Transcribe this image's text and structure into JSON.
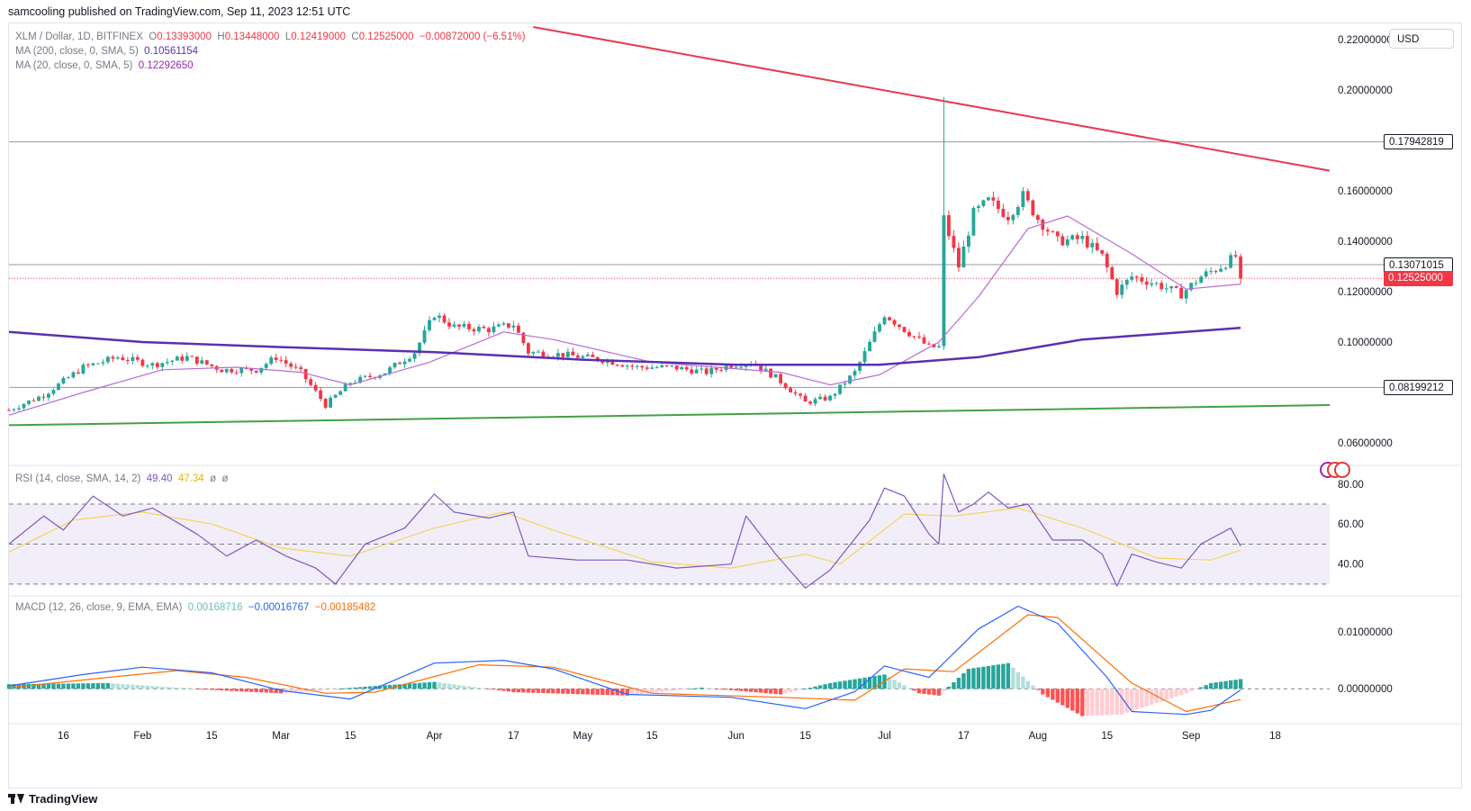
{
  "header": {
    "publisher_text": "samcooling published on TradingView.com, Sep 11, 2023 12:51 UTC"
  },
  "legend": {
    "symbol": "XLM / Dollar, 1D, BITFINEX",
    "open_label": "O",
    "open": "0.13393000",
    "high_label": "H",
    "high": "0.13448000",
    "low_label": "L",
    "low": "0.12419000",
    "close_label": "C",
    "close": "0.12525000",
    "change": "−0.00872000 (−6.51%)",
    "ma200_label": "MA (200, close, 0, SMA, 5)",
    "ma200_value": "0.10561154",
    "ma20_label": "MA (20, close, 0, SMA, 5)",
    "ma20_value": "0.12292650"
  },
  "rsi_legend": {
    "label": "RSI (14, close, SMA, 14, 2)",
    "rsi": "49.40",
    "rsi_ma": "47.34",
    "extra1": "ø",
    "extra2": "ø"
  },
  "macd_legend": {
    "label": "MACD (12, 26, close, 9, EMA, EMA)",
    "histogram": "0.00168716",
    "macd": "−0.00016767",
    "signal": "−0.00185482"
  },
  "currency": "USD",
  "price_tags": {
    "resistance_top": "0.17942819",
    "resistance_mid": "0.13071015",
    "last_price": "0.12525000",
    "support": "0.08199212"
  },
  "footer": {
    "brand": "TradingView"
  },
  "colors": {
    "up": "#26a69a",
    "down": "#f23645",
    "ma200": "#5b2fb0",
    "ma20": "#b86ad6",
    "trend_red": "#e8384f",
    "trend_green": "#43a047",
    "rsi": "#7e57c2",
    "rsi_ma": "#f5d45a",
    "macd": "#2962ff",
    "signal": "#ff6d00"
  },
  "chart_data": [
    {
      "type": "candlestick",
      "price_axis_ticks": [
        "0.22000000",
        "0.20000000",
        "0.16000000",
        "0.14000000",
        "0.12000000",
        "0.10000000",
        "0.06000000"
      ],
      "x_tick_labels": [
        "16",
        "Feb",
        "15",
        "Mar",
        "15",
        "Apr",
        "17",
        "May",
        "15",
        "Jun",
        "15",
        "Jul",
        "17",
        "Aug",
        "15",
        "Sep",
        "18"
      ],
      "x_tick_dates": [
        "2023-01-16",
        "2023-02-01",
        "2023-02-15",
        "2023-03-01",
        "2023-03-15",
        "2023-04-01",
        "2023-04-17",
        "2023-05-01",
        "2023-05-15",
        "2023-06-01",
        "2023-06-15",
        "2023-07-01",
        "2023-07-17",
        "2023-08-01",
        "2023-08-15",
        "2023-09-01",
        "2023-09-18"
      ],
      "x_range": [
        "2023-01-05",
        "2023-09-29"
      ],
      "ylim": [
        0.05,
        0.225
      ],
      "horizontal_levels": [
        0.17942819,
        0.13071015,
        0.08199212
      ],
      "last_price": 0.12525,
      "trendline_resistance": [
        [
          "2023-04-21",
          0.225
        ],
        [
          "2023-09-29",
          0.168
        ]
      ],
      "trendline_support": [
        [
          "2023-01-05",
          0.067
        ],
        [
          "2023-09-29",
          0.075
        ]
      ],
      "close_path": [
        [
          "2023-01-05",
          0.073
        ],
        [
          "2023-01-12",
          0.079
        ],
        [
          "2023-01-20",
          0.09
        ],
        [
          "2023-01-27",
          0.094
        ],
        [
          "2023-02-03",
          0.091
        ],
        [
          "2023-02-10",
          0.094
        ],
        [
          "2023-02-17",
          0.089
        ],
        [
          "2023-02-24",
          0.089
        ],
        [
          "2023-02-28",
          0.094
        ],
        [
          "2023-03-05",
          0.088
        ],
        [
          "2023-03-10",
          0.075
        ],
        [
          "2023-03-15",
          0.084
        ],
        [
          "2023-03-22",
          0.088
        ],
        [
          "2023-03-28",
          0.096
        ],
        [
          "2023-04-01",
          0.111
        ],
        [
          "2023-04-05",
          0.106
        ],
        [
          "2023-04-12",
          0.105
        ],
        [
          "2023-04-17",
          0.107
        ],
        [
          "2023-04-20",
          0.096
        ],
        [
          "2023-04-27",
          0.095
        ],
        [
          "2023-05-05",
          0.093
        ],
        [
          "2023-05-12",
          0.09
        ],
        [
          "2023-05-19",
          0.09
        ],
        [
          "2023-05-26",
          0.088
        ],
        [
          "2023-05-31",
          0.091
        ],
        [
          "2023-06-04",
          0.092
        ],
        [
          "2023-06-09",
          0.086
        ],
        [
          "2023-06-15",
          0.076
        ],
        [
          "2023-06-20",
          0.078
        ],
        [
          "2023-06-25",
          0.088
        ],
        [
          "2023-07-01",
          0.111
        ],
        [
          "2023-07-05",
          0.105
        ],
        [
          "2023-07-10",
          0.098
        ],
        [
          "2023-07-12",
          0.098
        ],
        [
          "2023-07-13",
          0.149
        ],
        [
          "2023-07-16",
          0.13
        ],
        [
          "2023-07-19",
          0.151
        ],
        [
          "2023-07-22",
          0.156
        ],
        [
          "2023-07-26",
          0.15
        ],
        [
          "2023-07-29",
          0.158
        ],
        [
          "2023-08-01",
          0.149
        ],
        [
          "2023-08-05",
          0.14
        ],
        [
          "2023-08-10",
          0.141
        ],
        [
          "2023-08-14",
          0.134
        ],
        [
          "2023-08-17",
          0.12
        ],
        [
          "2023-08-20",
          0.126
        ],
        [
          "2023-08-25",
          0.123
        ],
        [
          "2023-08-30",
          0.119
        ],
        [
          "2023-09-03",
          0.126
        ],
        [
          "2023-09-07",
          0.13
        ],
        [
          "2023-09-10",
          0.134
        ],
        [
          "2023-09-11",
          0.125
        ]
      ],
      "ma20_path": [
        [
          "2023-01-05",
          0.071
        ],
        [
          "2023-01-20",
          0.08
        ],
        [
          "2023-02-05",
          0.089
        ],
        [
          "2023-02-20",
          0.09
        ],
        [
          "2023-03-05",
          0.088
        ],
        [
          "2023-03-15",
          0.083
        ],
        [
          "2023-03-31",
          0.092
        ],
        [
          "2023-04-15",
          0.104
        ],
        [
          "2023-04-25",
          0.101
        ],
        [
          "2023-05-15",
          0.092
        ],
        [
          "2023-06-10",
          0.088
        ],
        [
          "2023-06-20",
          0.083
        ],
        [
          "2023-06-30",
          0.087
        ],
        [
          "2023-07-12",
          0.1
        ],
        [
          "2023-07-20",
          0.118
        ],
        [
          "2023-07-30",
          0.145
        ],
        [
          "2023-08-07",
          0.15
        ],
        [
          "2023-08-20",
          0.135
        ],
        [
          "2023-08-31",
          0.121
        ],
        [
          "2023-09-11",
          0.123
        ]
      ],
      "ma200_path": [
        [
          "2023-01-05",
          0.104
        ],
        [
          "2023-02-01",
          0.1
        ],
        [
          "2023-03-01",
          0.098
        ],
        [
          "2023-04-01",
          0.096
        ],
        [
          "2023-05-01",
          0.093
        ],
        [
          "2023-06-01",
          0.091
        ],
        [
          "2023-06-30",
          0.091
        ],
        [
          "2023-07-20",
          0.094
        ],
        [
          "2023-08-10",
          0.101
        ],
        [
          "2023-09-11",
          0.1056
        ]
      ]
    },
    {
      "type": "line",
      "name": "RSI",
      "y_ticks": [
        80,
        60,
        40
      ],
      "ylim": [
        25,
        88
      ],
      "band": [
        30,
        70
      ],
      "midline": 50,
      "rsi_path": [
        [
          "2023-01-05",
          50
        ],
        [
          "2023-01-12",
          64
        ],
        [
          "2023-01-16",
          57
        ],
        [
          "2023-01-22",
          74
        ],
        [
          "2023-01-28",
          64
        ],
        [
          "2023-02-03",
          68
        ],
        [
          "2023-02-12",
          55
        ],
        [
          "2023-02-18",
          44
        ],
        [
          "2023-02-24",
          52
        ],
        [
          "2023-03-02",
          44
        ],
        [
          "2023-03-08",
          38
        ],
        [
          "2023-03-12",
          30
        ],
        [
          "2023-03-18",
          50
        ],
        [
          "2023-03-26",
          58
        ],
        [
          "2023-04-01",
          75
        ],
        [
          "2023-04-05",
          66
        ],
        [
          "2023-04-12",
          63
        ],
        [
          "2023-04-17",
          66
        ],
        [
          "2023-04-20",
          44
        ],
        [
          "2023-04-30",
          42
        ],
        [
          "2023-05-10",
          42
        ],
        [
          "2023-05-20",
          38
        ],
        [
          "2023-05-31",
          40
        ],
        [
          "2023-06-03",
          64
        ],
        [
          "2023-06-09",
          45
        ],
        [
          "2023-06-15",
          28
        ],
        [
          "2023-06-20",
          37
        ],
        [
          "2023-06-28",
          62
        ],
        [
          "2023-07-01",
          78
        ],
        [
          "2023-07-05",
          74
        ],
        [
          "2023-07-10",
          55
        ],
        [
          "2023-07-12",
          50
        ],
        [
          "2023-07-13",
          85
        ],
        [
          "2023-07-16",
          66
        ],
        [
          "2023-07-19",
          70
        ],
        [
          "2023-07-22",
          76
        ],
        [
          "2023-07-26",
          68
        ],
        [
          "2023-07-30",
          70
        ],
        [
          "2023-08-04",
          52
        ],
        [
          "2023-08-10",
          52
        ],
        [
          "2023-08-14",
          45
        ],
        [
          "2023-08-17",
          29
        ],
        [
          "2023-08-20",
          45
        ],
        [
          "2023-08-25",
          41
        ],
        [
          "2023-08-30",
          38
        ],
        [
          "2023-09-03",
          50
        ],
        [
          "2023-09-09",
          58
        ],
        [
          "2023-09-11",
          49
        ]
      ],
      "rsi_ma_path": [
        [
          "2023-01-05",
          46
        ],
        [
          "2023-01-18",
          62
        ],
        [
          "2023-02-01",
          66
        ],
        [
          "2023-02-15",
          60
        ],
        [
          "2023-03-01",
          48
        ],
        [
          "2023-03-15",
          44
        ],
        [
          "2023-04-01",
          58
        ],
        [
          "2023-04-15",
          66
        ],
        [
          "2023-04-25",
          57
        ],
        [
          "2023-05-15",
          41
        ],
        [
          "2023-05-31",
          38
        ],
        [
          "2023-06-15",
          45
        ],
        [
          "2023-06-22",
          40
        ],
        [
          "2023-07-05",
          65
        ],
        [
          "2023-07-15",
          64
        ],
        [
          "2023-07-28",
          68
        ],
        [
          "2023-08-10",
          58
        ],
        [
          "2023-08-25",
          43
        ],
        [
          "2023-09-05",
          42
        ],
        [
          "2023-09-11",
          47
        ]
      ]
    },
    {
      "type": "line",
      "name": "MACD",
      "y_ticks": [
        0.01,
        0.0
      ],
      "y_tick_labels": [
        "0.01000000",
        "0.00000000"
      ],
      "ylim": [
        -0.0055,
        0.016
      ],
      "macd_path": [
        [
          "2023-01-05",
          0.0005
        ],
        [
          "2023-01-20",
          0.0025
        ],
        [
          "2023-02-01",
          0.0038
        ],
        [
          "2023-02-15",
          0.0028
        ],
        [
          "2023-03-01",
          -0.0003
        ],
        [
          "2023-03-15",
          -0.0018
        ],
        [
          "2023-04-01",
          0.0045
        ],
        [
          "2023-04-15",
          0.005
        ],
        [
          "2023-04-25",
          0.0035
        ],
        [
          "2023-05-10",
          -0.001
        ],
        [
          "2023-05-31",
          -0.0015
        ],
        [
          "2023-06-15",
          -0.0035
        ],
        [
          "2023-06-25",
          -0.0005
        ],
        [
          "2023-07-01",
          0.004
        ],
        [
          "2023-07-10",
          0.002
        ],
        [
          "2023-07-20",
          0.0105
        ],
        [
          "2023-07-28",
          0.0145
        ],
        [
          "2023-08-05",
          0.0115
        ],
        [
          "2023-08-15",
          0.002
        ],
        [
          "2023-08-20",
          -0.004
        ],
        [
          "2023-08-31",
          -0.0045
        ],
        [
          "2023-09-05",
          -0.0038
        ],
        [
          "2023-09-11",
          -0.0002
        ]
      ],
      "signal_path": [
        [
          "2023-01-05",
          0.0002
        ],
        [
          "2023-01-25",
          0.002
        ],
        [
          "2023-02-08",
          0.0032
        ],
        [
          "2023-02-22",
          0.002
        ],
        [
          "2023-03-10",
          -0.0008
        ],
        [
          "2023-03-20",
          -0.0006
        ],
        [
          "2023-04-10",
          0.0042
        ],
        [
          "2023-04-25",
          0.0038
        ],
        [
          "2023-05-15",
          -0.0008
        ],
        [
          "2023-06-10",
          -0.0015
        ],
        [
          "2023-06-25",
          -0.002
        ],
        [
          "2023-07-05",
          0.0035
        ],
        [
          "2023-07-15",
          0.003
        ],
        [
          "2023-07-30",
          0.013
        ],
        [
          "2023-08-05",
          0.0125
        ],
        [
          "2023-08-20",
          0.001
        ],
        [
          "2023-08-31",
          -0.004
        ],
        [
          "2023-09-11",
          -0.0019
        ]
      ],
      "histogram_profile": [
        [
          "2023-01-05",
          0.0008
        ],
        [
          "2023-01-25",
          0.001
        ],
        [
          "2023-02-15",
          -0.0002
        ],
        [
          "2023-03-01",
          -0.0008
        ],
        [
          "2023-03-20",
          0.0005
        ],
        [
          "2023-04-01",
          0.0012
        ],
        [
          "2023-04-17",
          -0.0006
        ],
        [
          "2023-05-10",
          -0.0012
        ],
        [
          "2023-05-25",
          0.0002
        ],
        [
          "2023-06-10",
          -0.001
        ],
        [
          "2023-06-20",
          0.001
        ],
        [
          "2023-07-01",
          0.0025
        ],
        [
          "2023-07-08",
          -0.0008
        ],
        [
          "2023-07-12",
          -0.0012
        ],
        [
          "2023-07-18",
          0.0035
        ],
        [
          "2023-07-26",
          0.0045
        ],
        [
          "2023-08-02",
          -0.001
        ],
        [
          "2023-08-10",
          -0.0048
        ],
        [
          "2023-08-18",
          -0.0045
        ],
        [
          "2023-08-31",
          -0.0008
        ],
        [
          "2023-09-05",
          0.001
        ],
        [
          "2023-09-11",
          0.0017
        ]
      ]
    }
  ]
}
